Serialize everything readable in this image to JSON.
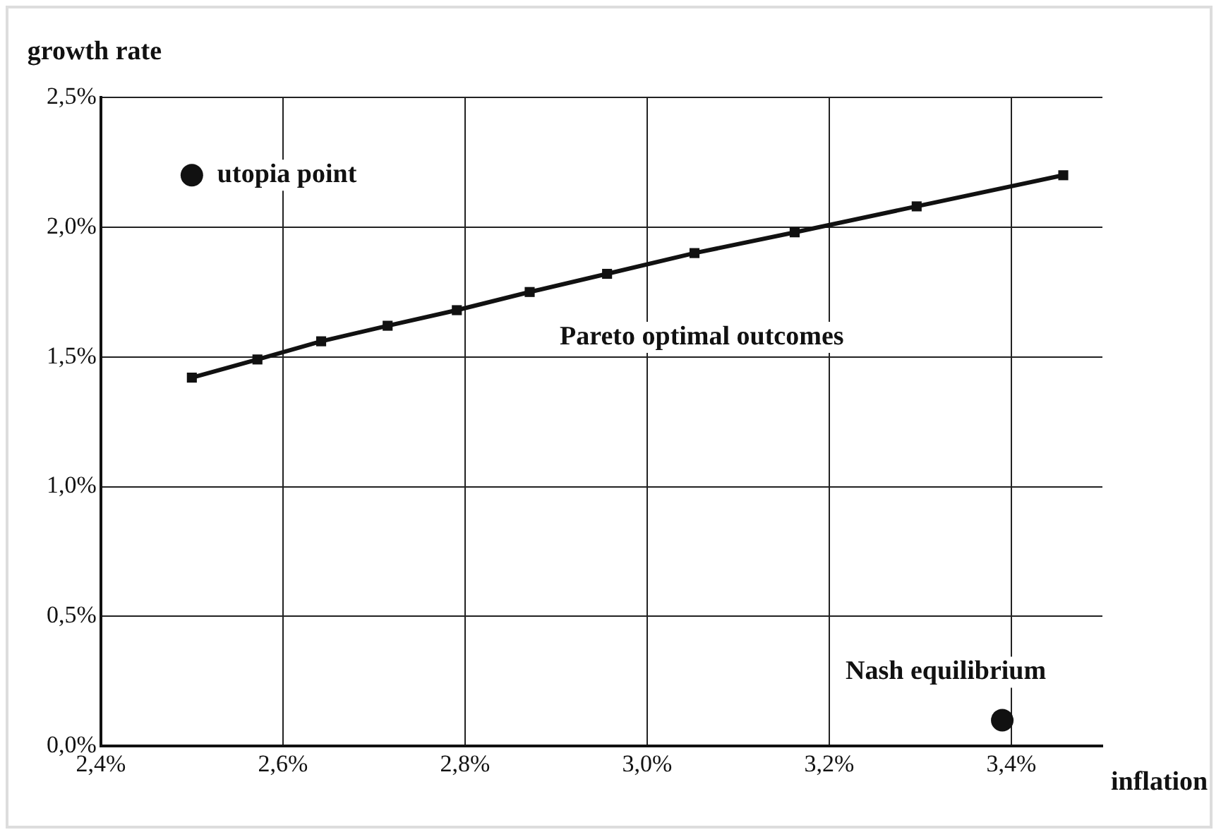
{
  "chart_data": {
    "type": "line",
    "xlabel": "inflation",
    "ylabel": "growth rate",
    "xlim": [
      2.4,
      3.5
    ],
    "ylim": [
      0,
      2.5
    ],
    "xticks": [
      {
        "value": 2.4,
        "label": "2,4%"
      },
      {
        "value": 2.6,
        "label": "2,6%"
      },
      {
        "value": 2.8,
        "label": "2,8%"
      },
      {
        "value": 3.0,
        "label": "3,0%"
      },
      {
        "value": 3.2,
        "label": "3,2%"
      },
      {
        "value": 3.4,
        "label": "3,4%"
      }
    ],
    "yticks": [
      {
        "value": 0,
        "label": "0,0%"
      },
      {
        "value": 0.5,
        "label": "0,5%"
      },
      {
        "value": 1.0,
        "label": "1,0%"
      },
      {
        "value": 1.5,
        "label": "1,5%"
      },
      {
        "value": 2.0,
        "label": "2,0%"
      },
      {
        "value": 2.5,
        "label": "2,5%"
      }
    ],
    "grid": true,
    "legend": false,
    "series": [
      {
        "color": "#111111",
        "marker": "square",
        "x": [
          2.5,
          2.572,
          2.642,
          2.715,
          2.791,
          2.871,
          2.956,
          3.052,
          3.162,
          3.296,
          3.457
        ],
        "values": [
          1.42,
          1.49,
          1.56,
          1.62,
          1.68,
          1.75,
          1.82,
          1.9,
          1.98,
          2.08,
          2.2
        ]
      },
      {
        "type": "scatter",
        "color": "#111111",
        "marker": "circle",
        "x": [
          2.5
        ],
        "values": [
          2.2
        ]
      },
      {
        "type": "scatter",
        "color": "#111111",
        "marker": "circle",
        "x": [
          3.39
        ],
        "values": [
          0.1
        ]
      }
    ],
    "annotations": [
      {
        "text": "utopia point",
        "x": 2.5,
        "y": 2.2
      },
      "Pareto optimal outcomes",
      {
        "text": "Nash equilibrium",
        "x": 3.39,
        "y": 0.1
      }
    ]
  }
}
